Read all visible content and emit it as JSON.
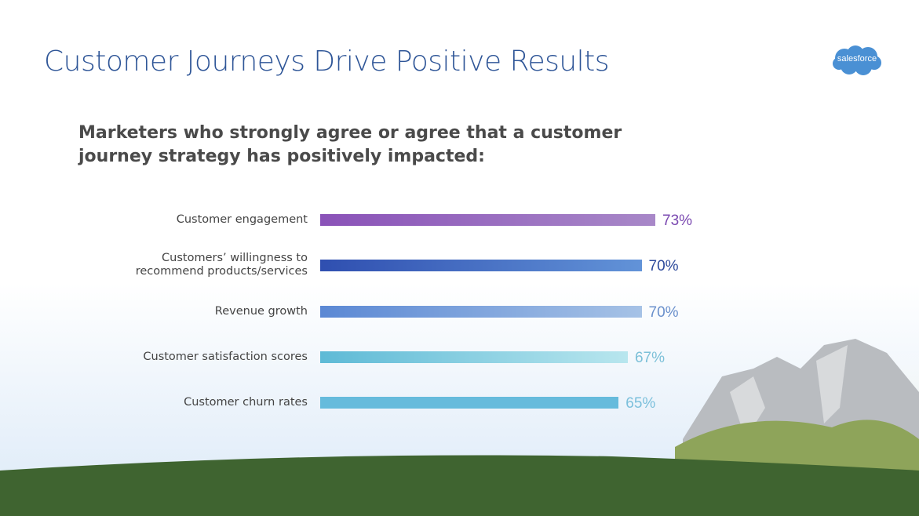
{
  "title": "Customer Journeys Drive Positive Results",
  "logo_text": "salesforce",
  "colors": {
    "title": "#2e5597",
    "logo": "#4a90d4"
  },
  "chart_data": {
    "type": "bar",
    "orientation": "horizontal",
    "title": "Marketers who strongly agree or agree that a customer journey strategy has positively impacted:",
    "categories": [
      "Customer engagement",
      "Customers’ willingness to recommend products/services",
      "Revenue growth",
      "Customer satisfaction scores",
      "Customer churn rates"
    ],
    "values": [
      73,
      70,
      70,
      67,
      65
    ],
    "value_labels": [
      "73%",
      "70%",
      "70%",
      "67%",
      "65%"
    ],
    "unit": "%",
    "bar_colors": [
      [
        "#8a52b8",
        "#a888c8"
      ],
      [
        "#2f4fb0",
        "#6293d8"
      ],
      [
        "#5b88d4",
        "#a6c2e6"
      ],
      [
        "#5ebad6",
        "#b8e6ee"
      ],
      [
        "#66bbdc",
        "#66bbdc"
      ]
    ],
    "label_colors": [
      "#7a48b0",
      "#2d4a9c",
      "#6a90cc",
      "#7cc0d8",
      "#7cc0dc"
    ],
    "xlim": [
      0,
      100
    ],
    "grid": false
  }
}
